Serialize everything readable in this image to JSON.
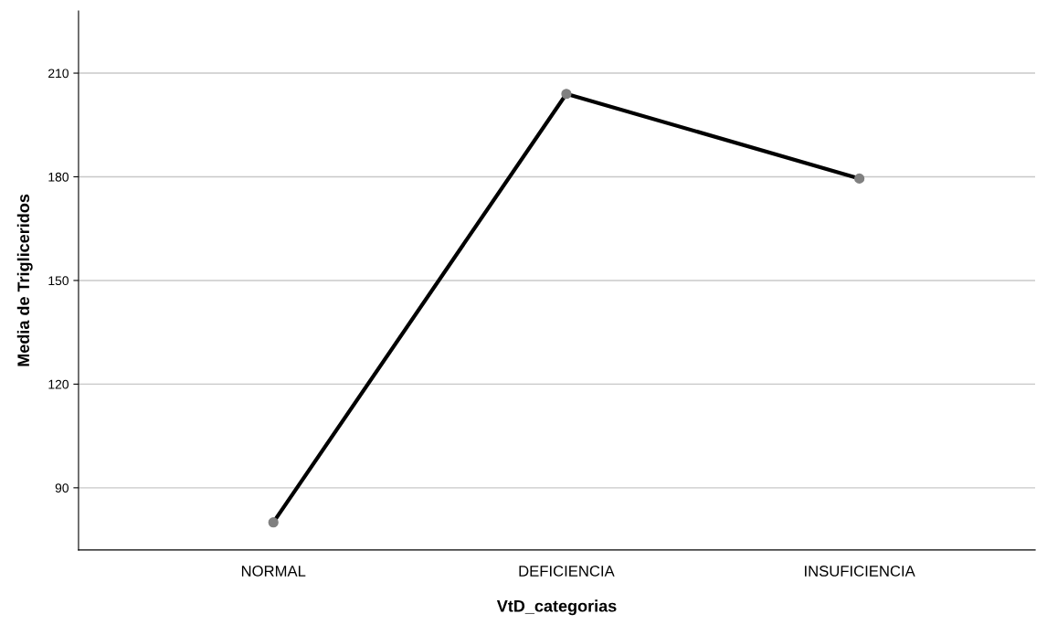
{
  "chart_data": {
    "type": "line",
    "xlabel": "VtD_categorias",
    "ylabel": "Media de Trigliceridos",
    "categories": [
      "NORMAL",
      "DEFICIENCIA",
      "INSUFICIENCIA"
    ],
    "series": [
      {
        "color": "#000000",
        "colors": [
          "#808080",
          "#808080",
          "#808080"
        ],
        "values": [
          80,
          204,
          179.5
        ]
      }
    ],
    "ylim": [
      72,
      228
    ],
    "yticks": [
      90,
      120,
      150,
      180,
      210
    ],
    "grid": "y",
    "marker": "circle",
    "line_style": "solid"
  }
}
